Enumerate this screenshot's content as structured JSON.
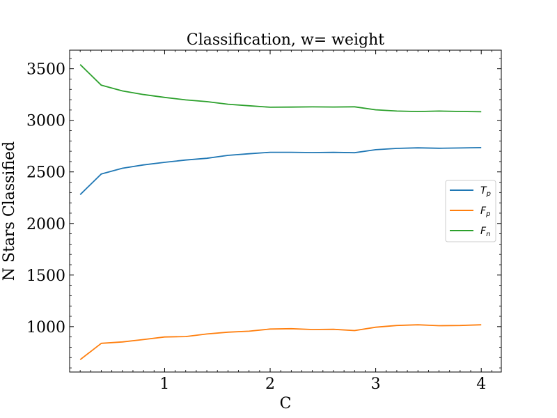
{
  "chart_data": {
    "type": "line",
    "title": "Classification, w= weight",
    "xlabel": "C",
    "ylabel": "N Stars Classified",
    "xlim": [
      0.1,
      4.19
    ],
    "ylim": [
      560,
      3680
    ],
    "xticks": [
      1,
      2,
      3,
      4
    ],
    "xtick_labels": [
      "1",
      "2",
      "3",
      "4"
    ],
    "yticks": [
      1000,
      1500,
      2000,
      2500,
      3000,
      3500
    ],
    "ytick_labels": [
      "1000",
      "1500",
      "2000",
      "2500",
      "3000",
      "3500"
    ],
    "x": [
      0.2,
      0.4,
      0.6,
      0.8,
      1.0,
      1.2,
      1.4,
      1.6,
      1.8,
      2.0,
      2.2,
      2.4,
      2.6,
      2.8,
      3.0,
      3.2,
      3.4,
      3.6,
      3.8,
      4.0
    ],
    "series": [
      {
        "name": "T_p",
        "color": "#1f77b4",
        "values": [
          2280,
          2480,
          2535,
          2568,
          2593,
          2615,
          2632,
          2660,
          2676,
          2690,
          2690,
          2687,
          2689,
          2686,
          2715,
          2728,
          2733,
          2729,
          2732,
          2735
        ]
      },
      {
        "name": "F_p",
        "color": "#ff7f0e",
        "values": [
          680,
          838,
          852,
          875,
          900,
          904,
          929,
          946,
          956,
          977,
          980,
          972,
          974,
          962,
          994,
          1011,
          1018,
          1009,
          1011,
          1018
        ]
      },
      {
        "name": "F_n",
        "color": "#2ca02c",
        "values": [
          3540,
          3340,
          3285,
          3250,
          3222,
          3198,
          3181,
          3156,
          3141,
          3127,
          3128,
          3130,
          3129,
          3131,
          3102,
          3090,
          3085,
          3090,
          3086,
          3083
        ]
      }
    ],
    "legend": {
      "position": "center-right",
      "entries": [
        {
          "base": "T",
          "sub": "p"
        },
        {
          "base": "F",
          "sub": "p"
        },
        {
          "base": "F",
          "sub": "n"
        }
      ]
    },
    "grid": false
  }
}
